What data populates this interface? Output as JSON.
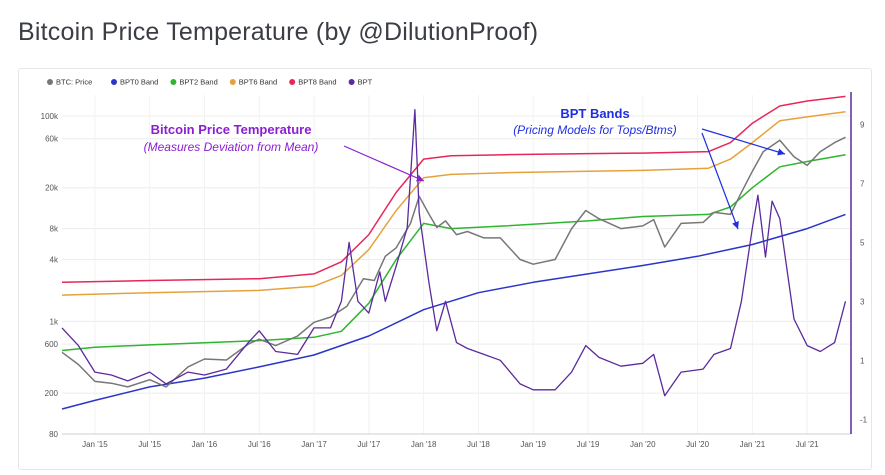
{
  "page": {
    "title": "Bitcoin Price Temperature (by @DilutionProof)"
  },
  "chart_data": {
    "type": "line",
    "legend": [
      {
        "name": "BTC: Price",
        "color": "#777777"
      },
      {
        "name": "BPT0 Band",
        "color": "#2b35c8"
      },
      {
        "name": "BPT2 Band",
        "color": "#2fb52f"
      },
      {
        "name": "BPT6 Band",
        "color": "#e6a23a"
      },
      {
        "name": "BPT8 Band",
        "color": "#e8265a"
      },
      {
        "name": "BPT",
        "color": "#5b2a9e"
      }
    ],
    "legend_position": "top-left",
    "x_ticks": [
      "Jan '15",
      "Jul '15",
      "Jan '16",
      "Jul '16",
      "Jan '17",
      "Jul '17",
      "Jan '18",
      "Jul '18",
      "Jan '19",
      "Jul '19",
      "Jan '20",
      "Jul '20",
      "Jan '21",
      "Jul '21"
    ],
    "x_range": [
      "2014-09",
      "2021-11"
    ],
    "y_left": {
      "scale": "log",
      "ticks": [
        "100k",
        "60k",
        "20k",
        "8k",
        "4k",
        "1k",
        "600",
        "200",
        "80"
      ],
      "range": [
        80,
        160000
      ]
    },
    "y_right": {
      "scale": "linear",
      "ticks": [
        "9",
        "7",
        "5",
        "3",
        "1",
        "-1"
      ],
      "range": [
        -1.5,
        10
      ]
    },
    "series": [
      {
        "name": "BTC: Price",
        "axis": "left",
        "color": "#777777",
        "points": [
          [
            2014.7,
            500
          ],
          [
            2014.85,
            380
          ],
          [
            2015.0,
            260
          ],
          [
            2015.15,
            250
          ],
          [
            2015.3,
            230
          ],
          [
            2015.5,
            270
          ],
          [
            2015.65,
            230
          ],
          [
            2015.85,
            360
          ],
          [
            2016.0,
            430
          ],
          [
            2016.2,
            420
          ],
          [
            2016.4,
            600
          ],
          [
            2016.5,
            670
          ],
          [
            2016.65,
            580
          ],
          [
            2016.85,
            720
          ],
          [
            2017.0,
            980
          ],
          [
            2017.15,
            1100
          ],
          [
            2017.3,
            1400
          ],
          [
            2017.45,
            2600
          ],
          [
            2017.55,
            2500
          ],
          [
            2017.65,
            4300
          ],
          [
            2017.75,
            5200
          ],
          [
            2017.88,
            9000
          ],
          [
            2017.96,
            16500
          ],
          [
            2018.05,
            11000
          ],
          [
            2018.12,
            8200
          ],
          [
            2018.2,
            9500
          ],
          [
            2018.3,
            7000
          ],
          [
            2018.4,
            7500
          ],
          [
            2018.55,
            6500
          ],
          [
            2018.7,
            6500
          ],
          [
            2018.88,
            4000
          ],
          [
            2019.0,
            3600
          ],
          [
            2019.2,
            4000
          ],
          [
            2019.35,
            8000
          ],
          [
            2019.48,
            12000
          ],
          [
            2019.6,
            10000
          ],
          [
            2019.8,
            8000
          ],
          [
            2020.0,
            8500
          ],
          [
            2020.1,
            9800
          ],
          [
            2020.2,
            5300
          ],
          [
            2020.35,
            9000
          ],
          [
            2020.55,
            9200
          ],
          [
            2020.65,
            11500
          ],
          [
            2020.8,
            11000
          ],
          [
            2020.9,
            18000
          ],
          [
            2021.0,
            29000
          ],
          [
            2021.1,
            45000
          ],
          [
            2021.25,
            58000
          ],
          [
            2021.38,
            40000
          ],
          [
            2021.5,
            33000
          ],
          [
            2021.62,
            45000
          ],
          [
            2021.75,
            55000
          ],
          [
            2021.85,
            62000
          ]
        ]
      },
      {
        "name": "BPT0 Band",
        "axis": "left",
        "color": "#2b35c8",
        "points": [
          [
            2014.7,
            140
          ],
          [
            2015.0,
            170
          ],
          [
            2015.5,
            230
          ],
          [
            2016.0,
            280
          ],
          [
            2016.5,
            360
          ],
          [
            2017.0,
            470
          ],
          [
            2017.5,
            720
          ],
          [
            2018.0,
            1300
          ],
          [
            2018.5,
            1900
          ],
          [
            2019.0,
            2400
          ],
          [
            2019.5,
            2900
          ],
          [
            2020.0,
            3500
          ],
          [
            2020.5,
            4300
          ],
          [
            2021.0,
            5600
          ],
          [
            2021.5,
            8000
          ],
          [
            2021.85,
            11000
          ]
        ]
      },
      {
        "name": "BPT2 Band",
        "axis": "left",
        "color": "#2fb52f",
        "points": [
          [
            2014.7,
            520
          ],
          [
            2015.0,
            560
          ],
          [
            2015.5,
            590
          ],
          [
            2016.0,
            620
          ],
          [
            2016.5,
            650
          ],
          [
            2017.0,
            700
          ],
          [
            2017.25,
            800
          ],
          [
            2017.5,
            1500
          ],
          [
            2017.75,
            4000
          ],
          [
            2018.0,
            9000
          ],
          [
            2018.25,
            8000
          ],
          [
            2018.75,
            8500
          ],
          [
            2019.5,
            9500
          ],
          [
            2020.0,
            10500
          ],
          [
            2020.6,
            11000
          ],
          [
            2020.8,
            13000
          ],
          [
            2021.0,
            20000
          ],
          [
            2021.25,
            32000
          ],
          [
            2021.5,
            36000
          ],
          [
            2021.85,
            42000
          ]
        ]
      },
      {
        "name": "BPT6 Band",
        "axis": "left",
        "color": "#e6a23a",
        "points": [
          [
            2014.7,
            1800
          ],
          [
            2015.5,
            1900
          ],
          [
            2016.5,
            2000
          ],
          [
            2017.0,
            2200
          ],
          [
            2017.25,
            2800
          ],
          [
            2017.5,
            5000
          ],
          [
            2017.75,
            12000
          ],
          [
            2018.0,
            25000
          ],
          [
            2018.25,
            27000
          ],
          [
            2018.75,
            28000
          ],
          [
            2019.5,
            29000
          ],
          [
            2020.0,
            29500
          ],
          [
            2020.6,
            31000
          ],
          [
            2020.8,
            38000
          ],
          [
            2021.0,
            55000
          ],
          [
            2021.25,
            90000
          ],
          [
            2021.5,
            98000
          ],
          [
            2021.85,
            110000
          ]
        ]
      },
      {
        "name": "BPT8 Band",
        "axis": "left",
        "color": "#e8265a",
        "points": [
          [
            2014.7,
            2400
          ],
          [
            2015.5,
            2500
          ],
          [
            2016.5,
            2600
          ],
          [
            2017.0,
            2900
          ],
          [
            2017.25,
            3800
          ],
          [
            2017.5,
            7000
          ],
          [
            2017.75,
            18000
          ],
          [
            2018.0,
            38000
          ],
          [
            2018.25,
            41000
          ],
          [
            2018.75,
            42000
          ],
          [
            2019.5,
            43000
          ],
          [
            2020.0,
            43500
          ],
          [
            2020.6,
            45000
          ],
          [
            2020.8,
            55000
          ],
          [
            2021.0,
            85000
          ],
          [
            2021.25,
            125000
          ],
          [
            2021.5,
            140000
          ],
          [
            2021.85,
            155000
          ]
        ]
      },
      {
        "name": "BPT",
        "axis": "right",
        "color": "#5b2a9e",
        "points": [
          [
            2014.7,
            2.1
          ],
          [
            2014.85,
            1.5
          ],
          [
            2015.0,
            0.6
          ],
          [
            2015.15,
            0.5
          ],
          [
            2015.3,
            0.3
          ],
          [
            2015.5,
            0.6
          ],
          [
            2015.65,
            0.2
          ],
          [
            2015.85,
            0.6
          ],
          [
            2016.0,
            0.5
          ],
          [
            2016.2,
            0.7
          ],
          [
            2016.4,
            1.6
          ],
          [
            2016.5,
            2.0
          ],
          [
            2016.65,
            1.3
          ],
          [
            2016.85,
            1.2
          ],
          [
            2017.0,
            2.1
          ],
          [
            2017.15,
            2.1
          ],
          [
            2017.25,
            3.0
          ],
          [
            2017.32,
            5.0
          ],
          [
            2017.4,
            3.0
          ],
          [
            2017.5,
            2.6
          ],
          [
            2017.6,
            4.0
          ],
          [
            2017.65,
            3.0
          ],
          [
            2017.75,
            4.2
          ],
          [
            2017.85,
            5.5
          ],
          [
            2017.92,
            9.5
          ],
          [
            2017.96,
            6.0
          ],
          [
            2018.05,
            3.6
          ],
          [
            2018.12,
            2.0
          ],
          [
            2018.2,
            3.0
          ],
          [
            2018.3,
            1.6
          ],
          [
            2018.4,
            1.4
          ],
          [
            2018.55,
            1.2
          ],
          [
            2018.7,
            1.0
          ],
          [
            2018.88,
            0.2
          ],
          [
            2019.0,
            0.0
          ],
          [
            2019.2,
            0.0
          ],
          [
            2019.35,
            0.6
          ],
          [
            2019.48,
            1.5
          ],
          [
            2019.6,
            1.1
          ],
          [
            2019.8,
            0.8
          ],
          [
            2020.0,
            0.9
          ],
          [
            2020.1,
            1.2
          ],
          [
            2020.2,
            -0.2
          ],
          [
            2020.35,
            0.6
          ],
          [
            2020.55,
            0.7
          ],
          [
            2020.65,
            1.2
          ],
          [
            2020.8,
            1.4
          ],
          [
            2020.9,
            3.0
          ],
          [
            2021.0,
            5.5
          ],
          [
            2021.05,
            6.6
          ],
          [
            2021.12,
            4.5
          ],
          [
            2021.18,
            6.4
          ],
          [
            2021.25,
            5.8
          ],
          [
            2021.38,
            2.4
          ],
          [
            2021.5,
            1.5
          ],
          [
            2021.62,
            1.3
          ],
          [
            2021.75,
            1.6
          ],
          [
            2021.85,
            3.0
          ]
        ]
      }
    ],
    "annotations": [
      {
        "title": "Bitcoin Price Temperature",
        "subtitle": "(Measures Deviation from Mean)",
        "color": "#8b1fd0"
      },
      {
        "title": "BPT Bands",
        "subtitle": "(Pricing Models for Tops/Btms)",
        "color": "#1f2fe0"
      }
    ]
  }
}
